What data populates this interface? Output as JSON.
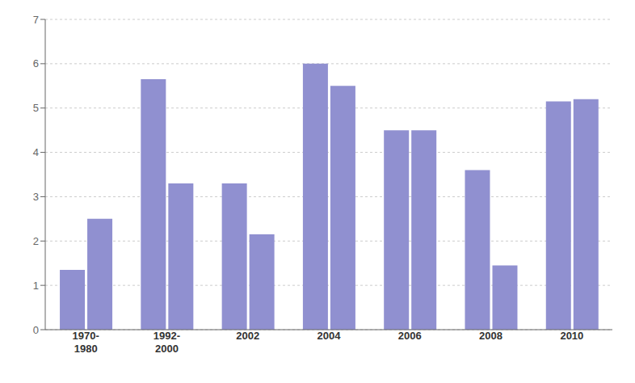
{
  "chart_data": {
    "type": "bar",
    "categories": [
      "1970-\n1980",
      "1992-\n2000",
      "2002",
      "2004",
      "2006",
      "2008",
      "2010"
    ],
    "series": [
      {
        "color": "#9090d0",
        "values": [
          1.35,
          5.65,
          3.3,
          6.0,
          4.5,
          3.6,
          5.15
        ]
      },
      {
        "color": "#9090d0",
        "values": [
          2.5,
          3.3,
          2.15,
          5.5,
          4.5,
          1.45,
          5.2
        ]
      }
    ],
    "ylim": [
      0,
      7
    ],
    "yticks": [
      0,
      1,
      2,
      3,
      4,
      5,
      6,
      7
    ],
    "grid": true
  }
}
